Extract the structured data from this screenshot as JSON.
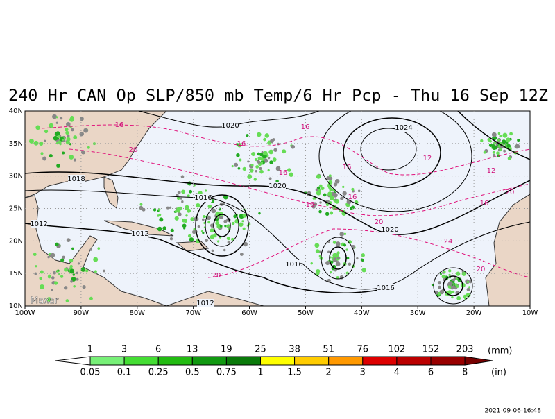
{
  "title": "240 Hr CAN Op SLP/850 mb Temp/6 Hr Pcp - Thu 16 Sep 12Z",
  "lat_labels": [
    "40N",
    "35N",
    "30N",
    "25N",
    "20N",
    "15N",
    "10N"
  ],
  "lon_labels": [
    "100W",
    "90W",
    "80W",
    "70W",
    "60W",
    "50W",
    "40W",
    "30W",
    "20W",
    "10W"
  ],
  "pressure_labels": [
    "1020",
    "1024",
    "1018",
    "1020",
    "1016",
    "1012",
    "1012",
    "1020",
    "1016",
    "1016",
    "1012"
  ],
  "temp_labels": [
    "16",
    "20",
    "16",
    "16",
    "16",
    "16",
    "16",
    "16",
    "20",
    "12",
    "12",
    "20",
    "16",
    "24",
    "20",
    "20"
  ],
  "brand": "Maxar",
  "colorbar": {
    "mm": [
      "1",
      "3",
      "6",
      "13",
      "19",
      "25",
      "38",
      "51",
      "76",
      "102",
      "152",
      "203"
    ],
    "in": [
      "0.05",
      "0.1",
      "0.25",
      "0.5",
      "0.75",
      "1",
      "1.5",
      "2",
      "3",
      "4",
      "6",
      "8"
    ],
    "mm_unit": "(mm)",
    "in_unit": "(in)"
  },
  "timestamp": "2021-09-06-16:48"
}
